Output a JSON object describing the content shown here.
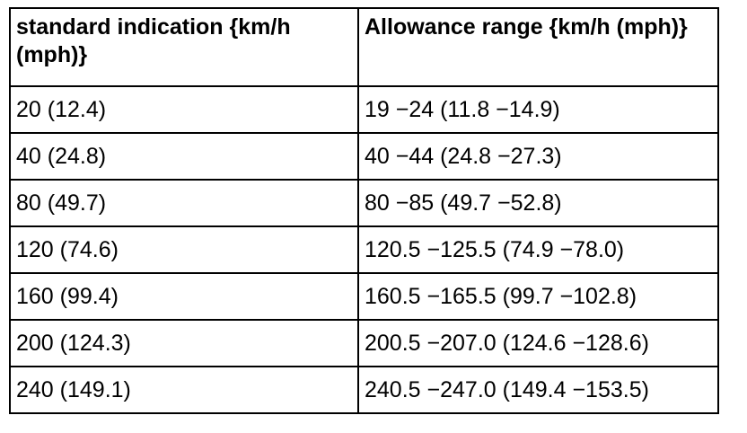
{
  "table": {
    "headers": [
      "standard indication {km/h (mph)}",
      "Allowance range {km/h (mph)}"
    ],
    "rows": [
      [
        "20 (12.4)",
        "19 −24 (11.8 −14.9)"
      ],
      [
        "40 (24.8)",
        "40 −44 (24.8 −27.3)"
      ],
      [
        "80 (49.7)",
        "80 −85 (49.7 −52.8)"
      ],
      [
        "120 (74.6)",
        "120.5 −125.5 (74.9 −78.0)"
      ],
      [
        "160 (99.4)",
        "160.5 −165.5 (99.7 −102.8)"
      ],
      [
        "200 (124.3)",
        "200.5 −207.0 (124.6 −128.6)"
      ],
      [
        "240 (149.1)",
        "240.5 −247.0 (149.4 −153.5)"
      ]
    ]
  }
}
